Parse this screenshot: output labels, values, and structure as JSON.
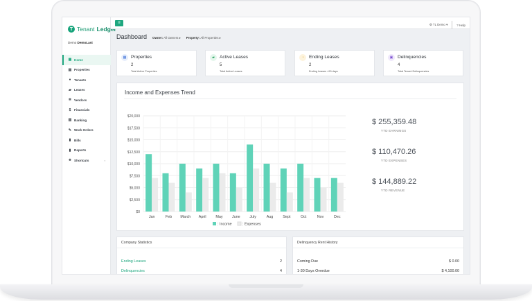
{
  "app": {
    "brand_pre": "Tenant",
    "brand_strong": "Ledger",
    "user_prefix": "Demo",
    "user_name": "DemoLast"
  },
  "sidebar": {
    "items": [
      {
        "label": "Home",
        "icon": "grid-icon",
        "glyph": "▦",
        "active": true
      },
      {
        "label": "Properties",
        "icon": "building-icon",
        "glyph": "▤"
      },
      {
        "label": "Tenants",
        "icon": "user-icon",
        "glyph": "●"
      },
      {
        "label": "Leases",
        "icon": "folder-icon",
        "glyph": "▰"
      },
      {
        "label": "Vendors",
        "icon": "cog-icon",
        "glyph": "✲"
      },
      {
        "label": "Financials",
        "icon": "dollar-icon",
        "glyph": "$"
      },
      {
        "label": "Banking",
        "icon": "bank-icon",
        "glyph": "▥"
      },
      {
        "label": "Work Orders",
        "icon": "wrench-icon",
        "glyph": "✎"
      },
      {
        "label": "Bills",
        "icon": "file-icon",
        "glyph": "▮"
      },
      {
        "label": "Reports",
        "icon": "report-icon",
        "glyph": "▮"
      },
      {
        "label": "Shortcuts",
        "icon": "star-icon",
        "glyph": "★",
        "caret": "‹"
      }
    ]
  },
  "topbar": {
    "menu_glyph": "≡",
    "user_label": "TL Demo",
    "user_caret": "▾",
    "help_label": "Help",
    "gear_glyph": "⚙",
    "help_glyph": "?"
  },
  "header": {
    "title": "Dashboard",
    "owner_label": "Owner:",
    "owner_value": "All Owners ▸",
    "property_label": "Property:",
    "property_value": "All Properties ▸"
  },
  "kpis": [
    {
      "title": "Properties",
      "value": "2",
      "sub": "Total Active Properties",
      "icon": "building-icon",
      "glyph": "▦",
      "bg": "#e6eefc",
      "fg": "#3c6fd6"
    },
    {
      "title": "Active Leases",
      "value": "5",
      "sub": "Total Active Leases",
      "icon": "folder-icon",
      "glyph": "▰",
      "bg": "#e4f6ec",
      "fg": "#27a35f"
    },
    {
      "title": "Ending Leases",
      "value": "2",
      "sub": "Ending Leases <90 days",
      "icon": "clock-icon",
      "glyph": "◔",
      "bg": "#fdf3dc",
      "fg": "#d9a21f"
    },
    {
      "title": "Delinquencies",
      "value": "4",
      "sub": "Total Tenant Delinquencies",
      "icon": "calendar-icon",
      "glyph": "▣",
      "bg": "#efe8fb",
      "fg": "#7b4fd0"
    }
  ],
  "chart_card": {
    "title": "Income and Expenses Trend",
    "stats": [
      {
        "value": "$ 255,359.48",
        "label": "YTD EARNINGS"
      },
      {
        "value": "$ 110,470.26",
        "label": "YTD EXPENSES"
      },
      {
        "value": "$ 144,889.22",
        "label": "YTD REVENUE"
      }
    ]
  },
  "chart_data": {
    "type": "bar",
    "categories": [
      "Jan",
      "Feb",
      "March",
      "April",
      "May",
      "June",
      "July",
      "Aug",
      "Sept",
      "Oct",
      "Nov",
      "Dec"
    ],
    "series": [
      {
        "name": ": Income",
        "color": "#5fd3b8",
        "values": [
          12000,
          8000,
          10000,
          9000,
          10000,
          8000,
          14000,
          10000,
          9000,
          10000,
          7000,
          7000
        ]
      },
      {
        "name": ": Expenses",
        "color": "#ebebeb",
        "values": [
          7000,
          6000,
          4000,
          7000,
          8000,
          5000,
          9000,
          6000,
          4000,
          7000,
          5000,
          6000
        ]
      }
    ],
    "yticks": [
      "$0",
      "$2,500",
      "$5,000",
      "$7,500",
      "$10,000",
      "$12,500",
      "$15,000",
      "$17,500",
      "$20,000"
    ],
    "ylim": [
      0,
      20000
    ],
    "grid": true,
    "legend_position": "bottom"
  },
  "company_stats": {
    "title": "Company Statistics",
    "rows": [
      {
        "label": "Ending Leases",
        "value": "2"
      },
      {
        "label": "Delinquencies",
        "value": "4"
      }
    ]
  },
  "delinquency": {
    "title": "Delinquency Rent History",
    "rows": [
      {
        "label": "Coming Due",
        "value": "$ 0.00"
      },
      {
        "label": "1-30 Days Overdue",
        "value": "$ 4,100.00"
      }
    ]
  }
}
